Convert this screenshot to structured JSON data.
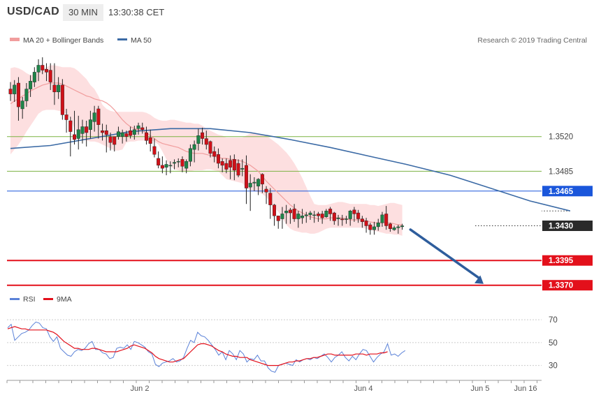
{
  "header": {
    "symbol": "USD/CAD",
    "timeframe": "30 MIN",
    "time": "13:30:38 CET"
  },
  "legend": {
    "ma20": "MA 20 + Bollinger Bands",
    "ma50": "MA 50",
    "credit": "Research © 2019 Trading Central"
  },
  "colors": {
    "up": "#1e8449",
    "down": "#d01018",
    "band": "#fddcdd",
    "ma20": "#f19d9d",
    "ma50": "#3b6aa5",
    "rsi": "#5b82d8",
    "ma9": "#e3101b",
    "support_green": "#7cb342",
    "resistance_blue": "#1a56db",
    "target_red": "#e3101b",
    "last_price_box": "#2a2a2a"
  },
  "chart_data": {
    "type": "candlestick",
    "title": "USD/CAD",
    "timeframe": "30 MIN",
    "x_labels": [
      "Jun 2",
      "Jun 4",
      "Jun 5",
      "Jun 16"
    ],
    "ylim": [
      1.3355,
      1.3605
    ],
    "candles": [
      [
        1.3568,
        1.3575,
        1.3556,
        1.3563
      ],
      [
        1.3563,
        1.3577,
        1.3555,
        1.3572
      ],
      [
        1.3574,
        1.358,
        1.3536,
        1.355
      ],
      [
        1.3548,
        1.356,
        1.3538,
        1.3556
      ],
      [
        1.3556,
        1.3574,
        1.355,
        1.3568
      ],
      [
        1.3568,
        1.3582,
        1.356,
        1.3576
      ],
      [
        1.3575,
        1.359,
        1.357,
        1.3585
      ],
      [
        1.3585,
        1.3598,
        1.3576,
        1.3592
      ],
      [
        1.3592,
        1.36,
        1.3583,
        1.3587
      ],
      [
        1.3588,
        1.3594,
        1.3576,
        1.3585
      ],
      [
        1.3587,
        1.3594,
        1.3567,
        1.3575
      ],
      [
        1.3572,
        1.3594,
        1.3552,
        1.3565
      ],
      [
        1.3565,
        1.358,
        1.3558,
        1.3572
      ],
      [
        1.3572,
        1.3578,
        1.3537,
        1.3542
      ],
      [
        1.3542,
        1.3548,
        1.3524,
        1.3537
      ],
      [
        1.3536,
        1.354,
        1.35,
        1.3525
      ],
      [
        1.3522,
        1.3546,
        1.3512,
        1.3517
      ],
      [
        1.3518,
        1.3541,
        1.3507,
        1.3527
      ],
      [
        1.3523,
        1.3537,
        1.3513,
        1.353
      ],
      [
        1.353,
        1.3536,
        1.351,
        1.3524
      ],
      [
        1.3527,
        1.3546,
        1.3518,
        1.3537
      ],
      [
        1.3535,
        1.3551,
        1.3525,
        1.3544
      ],
      [
        1.3548,
        1.3551,
        1.3518,
        1.3532
      ],
      [
        1.3526,
        1.3533,
        1.3516,
        1.3524
      ],
      [
        1.3526,
        1.3532,
        1.3504,
        1.3522
      ],
      [
        1.352,
        1.3524,
        1.3506,
        1.3514
      ],
      [
        1.352,
        1.352,
        1.3505,
        1.3512
      ],
      [
        1.352,
        1.353,
        1.3517,
        1.3525
      ],
      [
        1.352,
        1.3527,
        1.3513,
        1.3524
      ],
      [
        1.3523,
        1.3526,
        1.3515,
        1.352
      ],
      [
        1.3526,
        1.353,
        1.3518,
        1.3521
      ],
      [
        1.3522,
        1.3531,
        1.3517,
        1.3527
      ],
      [
        1.3528,
        1.3534,
        1.3522,
        1.3531
      ],
      [
        1.3529,
        1.3534,
        1.3523,
        1.3527
      ],
      [
        1.3524,
        1.353,
        1.3512,
        1.3516
      ],
      [
        1.3519,
        1.3527,
        1.3505,
        1.3513
      ],
      [
        1.351,
        1.3518,
        1.3499,
        1.3502
      ],
      [
        1.3498,
        1.3505,
        1.3488,
        1.3491
      ],
      [
        1.3491,
        1.35,
        1.3483,
        1.3488
      ],
      [
        1.3489,
        1.3496,
        1.3481,
        1.3492
      ],
      [
        1.3491,
        1.3495,
        1.3483,
        1.3491
      ],
      [
        1.3493,
        1.3497,
        1.3487,
        1.3494
      ],
      [
        1.3495,
        1.3498,
        1.3489,
        1.3495
      ],
      [
        1.3497,
        1.35,
        1.3484,
        1.349
      ],
      [
        1.3488,
        1.3497,
        1.3483,
        1.3495
      ],
      [
        1.3495,
        1.3512,
        1.349,
        1.3508
      ],
      [
        1.3507,
        1.3516,
        1.3494,
        1.3512
      ],
      [
        1.3513,
        1.3528,
        1.3506,
        1.3521
      ],
      [
        1.3524,
        1.3529,
        1.3512,
        1.3518
      ],
      [
        1.3518,
        1.3526,
        1.3507,
        1.3512
      ],
      [
        1.3515,
        1.3516,
        1.3499,
        1.3503
      ],
      [
        1.3505,
        1.351,
        1.3494,
        1.35
      ],
      [
        1.3502,
        1.3508,
        1.3488,
        1.3493
      ],
      [
        1.3495,
        1.3498,
        1.3484,
        1.3491
      ],
      [
        1.3493,
        1.3498,
        1.3483,
        1.3487
      ],
      [
        1.3496,
        1.3501,
        1.3477,
        1.3489
      ],
      [
        1.3497,
        1.3502,
        1.3476,
        1.3486
      ],
      [
        1.3493,
        1.3497,
        1.3479,
        1.3481
      ],
      [
        1.3487,
        1.3497,
        1.348,
        1.3488
      ],
      [
        1.3491,
        1.3501,
        1.3452,
        1.3468
      ],
      [
        1.3469,
        1.3482,
        1.3445,
        1.3473
      ],
      [
        1.3473,
        1.3479,
        1.3465,
        1.3474
      ],
      [
        1.347,
        1.3478,
        1.3461,
        1.3477
      ],
      [
        1.3482,
        1.3483,
        1.3463,
        1.3472
      ],
      [
        1.3467,
        1.347,
        1.3452,
        1.3464
      ],
      [
        1.3463,
        1.3468,
        1.3437,
        1.3451
      ],
      [
        1.3451,
        1.3452,
        1.343,
        1.344
      ],
      [
        1.344,
        1.344,
        1.3427,
        1.3435
      ],
      [
        1.3437,
        1.3449,
        1.3427,
        1.3442
      ],
      [
        1.3443,
        1.3451,
        1.3432,
        1.3445
      ],
      [
        1.3446,
        1.3448,
        1.3432,
        1.3443
      ],
      [
        1.3447,
        1.3452,
        1.3434,
        1.3437
      ],
      [
        1.3437,
        1.3445,
        1.3428,
        1.3442
      ],
      [
        1.3438,
        1.3447,
        1.3432,
        1.344
      ],
      [
        1.344,
        1.3444,
        1.3433,
        1.3441
      ],
      [
        1.3441,
        1.3445,
        1.3436,
        1.3443
      ],
      [
        1.3441,
        1.3445,
        1.3433,
        1.3441
      ],
      [
        1.3442,
        1.3444,
        1.3434,
        1.344
      ],
      [
        1.3442,
        1.3445,
        1.3432,
        1.3438
      ],
      [
        1.3439,
        1.3447,
        1.3438,
        1.3445
      ],
      [
        1.3447,
        1.3449,
        1.3435,
        1.3442
      ],
      [
        1.3443,
        1.3444,
        1.3431,
        1.3435
      ],
      [
        1.3437,
        1.3441,
        1.343,
        1.3438
      ],
      [
        1.3437,
        1.3441,
        1.343,
        1.3436
      ],
      [
        1.3437,
        1.344,
        1.3432,
        1.3437
      ],
      [
        1.3437,
        1.3446,
        1.343,
        1.3445
      ],
      [
        1.3446,
        1.3449,
        1.3434,
        1.3442
      ],
      [
        1.3443,
        1.3446,
        1.3433,
        1.3437
      ],
      [
        1.3437,
        1.344,
        1.3428,
        1.3434
      ],
      [
        1.3435,
        1.3438,
        1.3423,
        1.343
      ],
      [
        1.3431,
        1.3433,
        1.3421,
        1.3426
      ],
      [
        1.3426,
        1.3434,
        1.3421,
        1.3429
      ],
      [
        1.3429,
        1.3437,
        1.3425,
        1.3433
      ],
      [
        1.3433,
        1.3444,
        1.3429,
        1.3441
      ],
      [
        1.3442,
        1.345,
        1.3426,
        1.343
      ],
      [
        1.3432,
        1.3433,
        1.3424,
        1.3427
      ],
      [
        1.3426,
        1.343,
        1.3425,
        1.3428
      ],
      [
        1.3428,
        1.3431,
        1.3422,
        1.3429
      ],
      [
        1.3429,
        1.3432,
        1.3426,
        1.343
      ]
    ],
    "ma20": [
      1.3553,
      1.3556,
      1.3558,
      1.3561,
      1.3563,
      1.3566,
      1.3568,
      1.357,
      1.3572,
      1.3573,
      1.3574,
      1.3574,
      1.3574,
      1.3573,
      1.3571,
      1.3569,
      1.3567,
      1.3565,
      1.3563,
      1.3561,
      1.356,
      1.3558,
      1.3557,
      1.3556,
      1.3554,
      1.3551,
      1.3547,
      1.3542,
      1.3537,
      1.3533,
      1.353,
      1.3528,
      1.3527,
      1.3526,
      1.3524,
      1.3521,
      1.3518,
      1.3515,
      1.3513,
      1.3512,
      1.3511,
      1.351,
      1.3509,
      1.3507,
      1.3505,
      1.3504,
      1.3503,
      1.3503,
      1.3503,
      1.3502,
      1.3501,
      1.35,
      1.3499,
      1.3498,
      1.3498,
      1.3497,
      1.3497,
      1.3496,
      1.3495,
      1.3493,
      1.3491,
      1.3488,
      1.3485,
      1.348,
      1.3475,
      1.3471,
      1.3467,
      1.3463,
      1.3459,
      1.3455,
      1.3451,
      1.3448,
      1.3445,
      1.3443,
      1.3441,
      1.3439,
      1.3438,
      1.3437,
      1.3437,
      1.3437,
      1.3438,
      1.3438,
      1.3438,
      1.3438,
      1.3437,
      1.3436,
      1.3436,
      1.3436,
      1.3436,
      1.3435,
      1.3434,
      1.3433,
      1.3433,
      1.3433,
      1.3433,
      1.3433,
      1.3432,
      1.3431,
      1.3431
    ],
    "bb_upper": [
      1.3589,
      1.359,
      1.3589,
      1.3587,
      1.3584,
      1.3582,
      1.3583,
      1.3585,
      1.3588,
      1.359,
      1.3592,
      1.3592,
      1.3591,
      1.359,
      1.359,
      1.359,
      1.3589,
      1.3586,
      1.3582,
      1.3578,
      1.3572,
      1.3568,
      1.3561,
      1.3552,
      1.3548,
      1.3546,
      1.3545,
      1.3545,
      1.3545,
      1.3545,
      1.3545,
      1.3545,
      1.3545,
      1.3545,
      1.3544,
      1.3542,
      1.3539,
      1.3537,
      1.3536,
      1.3536,
      1.3537,
      1.3537,
      1.3536,
      1.3535,
      1.3534,
      1.3534,
      1.3533,
      1.3533,
      1.3531,
      1.3528,
      1.3526,
      1.3524,
      1.3522,
      1.3521,
      1.3519,
      1.3519,
      1.3519,
      1.3519,
      1.3519,
      1.3521,
      1.3523,
      1.3524,
      1.3523,
      1.3522,
      1.3521,
      1.3518,
      1.3515,
      1.3512,
      1.3508,
      1.3504,
      1.3499,
      1.3493,
      1.3486,
      1.3478,
      1.3469,
      1.346,
      1.3452,
      1.3451,
      1.3451,
      1.3451,
      1.3452,
      1.3453,
      1.3454,
      1.3454,
      1.3453,
      1.3452,
      1.3452,
      1.3452,
      1.3452,
      1.3452,
      1.3451,
      1.3451,
      1.345,
      1.3451,
      1.3452,
      1.3453,
      1.3453,
      1.3452,
      1.3451
    ],
    "bb_lower": [
      1.3502,
      1.3507,
      1.3512,
      1.3518,
      1.3525,
      1.3531,
      1.3537,
      1.3543,
      1.3546,
      1.3547,
      1.3547,
      1.3547,
      1.3546,
      1.3545,
      1.3543,
      1.3538,
      1.3528,
      1.3522,
      1.3517,
      1.3516,
      1.3515,
      1.3515,
      1.3514,
      1.3512,
      1.351,
      1.3508,
      1.3506,
      1.3506,
      1.3507,
      1.3514,
      1.3515,
      1.3515,
      1.3516,
      1.3516,
      1.3516,
      1.3516,
      1.3515,
      1.3512,
      1.3505,
      1.3497,
      1.349,
      1.3487,
      1.3486,
      1.3485,
      1.3485,
      1.3485,
      1.3486,
      1.3486,
      1.3486,
      1.3487,
      1.3487,
      1.3486,
      1.3485,
      1.3481,
      1.3477,
      1.3476,
      1.3475,
      1.3474,
      1.3473,
      1.3468,
      1.3466,
      1.3465,
      1.3464,
      1.3462,
      1.3459,
      1.3454,
      1.3449,
      1.3444,
      1.3438,
      1.3431,
      1.3427,
      1.3425,
      1.3424,
      1.3423,
      1.3423,
      1.3422,
      1.3422,
      1.3423,
      1.3425,
      1.3427,
      1.3428,
      1.3428,
      1.3428,
      1.3428,
      1.3428,
      1.3428,
      1.3428,
      1.3428,
      1.3428,
      1.3427,
      1.3426,
      1.3425,
      1.3424,
      1.3423,
      1.3422,
      1.3422,
      1.3421,
      1.3421,
      1.342
    ],
    "ma50_points": [
      [
        0,
        1.3508
      ],
      [
        10,
        1.3511
      ],
      [
        20,
        1.3518
      ],
      [
        30,
        1.3525
      ],
      [
        40,
        1.3528
      ],
      [
        50,
        1.3528
      ],
      [
        60,
        1.3524
      ],
      [
        70,
        1.3517
      ],
      [
        80,
        1.3509
      ],
      [
        90,
        1.35
      ],
      [
        99,
        1.3492
      ],
      [
        110,
        1.3481
      ],
      [
        120,
        1.3468
      ],
      [
        130,
        1.3455
      ],
      [
        140,
        1.3445
      ]
    ],
    "levels": [
      {
        "value": 1.352,
        "label": "1.3520",
        "kind": "support"
      },
      {
        "value": 1.3485,
        "label": "1.3485",
        "kind": "support"
      },
      {
        "value": 1.3465,
        "label": "1.3465",
        "kind": "resistance"
      },
      {
        "value": 1.343,
        "label": "1.3430",
        "kind": "last"
      },
      {
        "value": 1.3395,
        "label": "1.3395",
        "kind": "target"
      },
      {
        "value": 1.337,
        "label": "1.3370",
        "kind": "target"
      }
    ],
    "projection": {
      "from": [
        99,
        1.3429
      ],
      "to": [
        118,
        1.337
      ]
    },
    "rsi": {
      "ylim": [
        20,
        78
      ],
      "ticks": [
        70,
        50,
        30
      ],
      "values": [
        63,
        66,
        52,
        55,
        58,
        59,
        61,
        65,
        68,
        67,
        63,
        62,
        55,
        51,
        55,
        45,
        42,
        39,
        38,
        42,
        44,
        43,
        45,
        49,
        51,
        44,
        44,
        41,
        40,
        36,
        37,
        45,
        46,
        45,
        48,
        44,
        51,
        50,
        48,
        46,
        42,
        40,
        31,
        29,
        32,
        33,
        34,
        36,
        33,
        34,
        37,
        45,
        52,
        50,
        59,
        56,
        55,
        52,
        48,
        44,
        39,
        42,
        35,
        43,
        40,
        35,
        43,
        40,
        33,
        36,
        35,
        39,
        34,
        34,
        28,
        25,
        24,
        30,
        31,
        32,
        31,
        30,
        35,
        33,
        35,
        36,
        35,
        37,
        36,
        38,
        40,
        37,
        33,
        37,
        39,
        42,
        37,
        34,
        38,
        35,
        40,
        44,
        43,
        38,
        33,
        37,
        40,
        42,
        49,
        39,
        40,
        38,
        41,
        43
      ],
      "ma9": [
        62,
        63,
        64,
        63,
        62,
        62,
        61,
        61,
        61,
        61,
        61,
        61,
        60,
        59,
        57,
        54,
        51,
        49,
        47,
        45,
        45,
        44,
        44,
        44,
        45,
        45,
        44,
        43,
        42,
        42,
        42,
        42,
        43,
        44,
        45,
        47,
        48,
        47,
        46,
        45,
        43,
        41,
        38,
        36,
        35,
        34,
        33,
        33,
        34,
        35,
        36,
        39,
        42,
        45,
        48,
        49,
        49,
        48,
        47,
        45,
        43,
        42,
        40,
        39,
        38,
        38,
        37,
        37,
        37,
        35,
        34,
        33,
        32,
        31,
        30,
        30,
        30,
        30,
        31,
        32,
        33,
        33,
        34,
        34,
        35,
        36,
        36,
        37,
        37,
        38,
        39,
        40,
        40,
        39,
        39,
        39,
        39,
        39,
        39,
        40,
        40,
        40,
        39,
        40,
        40,
        40,
        41,
        41,
        42
      ]
    },
    "rsi_legend": {
      "rsi": "RSI",
      "ma9": "9MA"
    }
  }
}
